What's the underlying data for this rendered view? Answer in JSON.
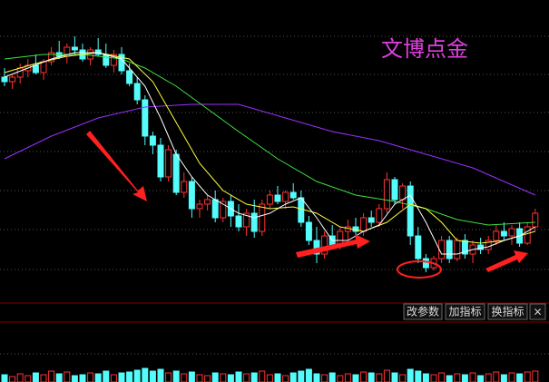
{
  "chart_data": {
    "type": "candlestick",
    "title": "文博点金",
    "title_color": "#e040e0",
    "up_color": "#ff3232",
    "down_color": "#54fcfc",
    "ylim": [
      0,
      310
    ],
    "candles": [
      [
        225,
        235,
        215,
        220
      ],
      [
        220,
        228,
        212,
        225
      ],
      [
        225,
        240,
        218,
        235
      ],
      [
        232,
        245,
        225,
        238
      ],
      [
        238,
        250,
        228,
        230
      ],
      [
        230,
        245,
        222,
        242
      ],
      [
        242,
        258,
        238,
        252
      ],
      [
        252,
        265,
        245,
        248
      ],
      [
        248,
        262,
        240,
        258
      ],
      [
        258,
        270,
        250,
        255
      ],
      [
        255,
        262,
        242,
        245
      ],
      [
        245,
        258,
        238,
        255
      ],
      [
        255,
        268,
        248,
        250
      ],
      [
        250,
        262,
        235,
        238
      ],
      [
        238,
        255,
        230,
        250
      ],
      [
        250,
        258,
        228,
        232
      ],
      [
        232,
        240,
        215,
        218
      ],
      [
        218,
        225,
        195,
        200
      ],
      [
        200,
        205,
        150,
        160
      ],
      [
        160,
        165,
        140,
        150
      ],
      [
        150,
        158,
        110,
        115
      ],
      [
        115,
        150,
        110,
        145
      ],
      [
        140,
        145,
        95,
        98
      ],
      [
        98,
        120,
        92,
        110
      ],
      [
        110,
        115,
        70,
        80
      ],
      [
        80,
        90,
        70,
        85
      ],
      [
        85,
        95,
        78,
        90
      ],
      [
        90,
        100,
        65,
        70
      ],
      [
        70,
        92,
        65,
        88
      ],
      [
        88,
        95,
        60,
        72
      ],
      [
        72,
        85,
        55,
        60
      ],
      [
        60,
        80,
        50,
        75
      ],
      [
        75,
        90,
        48,
        55
      ],
      [
        55,
        90,
        50,
        85
      ],
      [
        85,
        100,
        80,
        95
      ],
      [
        95,
        105,
        85,
        88
      ],
      [
        88,
        100,
        80,
        98
      ],
      [
        98,
        108,
        90,
        92
      ],
      [
        92,
        100,
        60,
        65
      ],
      [
        65,
        72,
        40,
        45
      ],
      [
        45,
        60,
        20,
        30
      ],
      [
        30,
        55,
        25,
        50
      ],
      [
        50,
        62,
        35,
        40
      ],
      [
        40,
        60,
        35,
        55
      ],
      [
        55,
        68,
        45,
        60
      ],
      [
        60,
        70,
        50,
        55
      ],
      [
        55,
        75,
        50,
        70
      ],
      [
        70,
        78,
        60,
        65
      ],
      [
        65,
        85,
        60,
        80
      ],
      [
        80,
        120,
        75,
        112
      ],
      [
        112,
        115,
        85,
        90
      ],
      [
        90,
        108,
        80,
        105
      ],
      [
        105,
        110,
        40,
        50
      ],
      [
        50,
        60,
        20,
        25
      ],
      [
        25,
        30,
        10,
        15
      ],
      [
        15,
        28,
        12,
        25
      ],
      [
        25,
        50,
        20,
        45
      ],
      [
        45,
        50,
        20,
        25
      ],
      [
        25,
        48,
        22,
        45
      ],
      [
        45,
        52,
        25,
        30
      ],
      [
        30,
        45,
        20,
        40
      ],
      [
        40,
        48,
        30,
        35
      ],
      [
        35,
        50,
        30,
        45
      ],
      [
        45,
        62,
        40,
        55
      ],
      [
        55,
        65,
        45,
        50
      ],
      [
        50,
        62,
        40,
        58
      ],
      [
        58,
        65,
        38,
        42
      ],
      [
        42,
        65,
        40,
        60
      ],
      [
        60,
        80,
        55,
        75
      ]
    ],
    "lines": [
      {
        "color": "#9b30ff",
        "x": [
          0,
          6,
          12,
          18,
          24,
          30,
          36,
          42,
          48,
          54,
          60,
          68
        ],
        "values": [
          135,
          160,
          180,
          192,
          195,
          195,
          180,
          165,
          155,
          140,
          125,
          95
        ]
      },
      {
        "color": "#40e040",
        "x": [
          0,
          5,
          10,
          15,
          18,
          22,
          26,
          30,
          35,
          40,
          45,
          50,
          54,
          58,
          62,
          68
        ],
        "values": [
          245,
          250,
          250,
          245,
          235,
          215,
          190,
          165,
          135,
          110,
          95,
          88,
          80,
          68,
          62,
          65
        ]
      },
      {
        "color": "#ffff40",
        "x": [
          0,
          4,
          8,
          12,
          16,
          19,
          22,
          25,
          28,
          31,
          34,
          37,
          40,
          43,
          46,
          49,
          52,
          54,
          56,
          58,
          61,
          64,
          68
        ],
        "values": [
          230,
          240,
          248,
          252,
          245,
          220,
          175,
          130,
          100,
          85,
          80,
          82,
          75,
          60,
          55,
          65,
          85,
          80,
          65,
          45,
          42,
          45,
          55
        ]
      },
      {
        "color": "#ffffff",
        "x": [
          0,
          3,
          6,
          9,
          12,
          15,
          18,
          20,
          22,
          24,
          26,
          28,
          30,
          32,
          34,
          36,
          38,
          40,
          42,
          44,
          46,
          48,
          50,
          52,
          54,
          56,
          58,
          60,
          62,
          64,
          66,
          68
        ],
        "values": [
          225,
          235,
          245,
          252,
          252,
          245,
          215,
          180,
          140,
          115,
          95,
          85,
          75,
          70,
          75,
          85,
          92,
          70,
          45,
          45,
          55,
          62,
          85,
          95,
          65,
          30,
          30,
          35,
          38,
          45,
          50,
          60
        ]
      }
    ],
    "volume": {
      "ylim": [
        0,
        20
      ],
      "values": [
        8,
        6,
        9,
        7,
        10,
        8,
        12,
        9,
        11,
        7,
        8,
        10,
        9,
        12,
        8,
        10,
        11,
        13,
        15,
        12,
        14,
        10,
        12,
        9,
        11,
        8,
        7,
        10,
        9,
        8,
        11,
        9,
        10,
        12,
        8,
        9,
        7,
        10,
        12,
        14,
        9,
        8,
        10,
        7,
        9,
        8,
        11,
        10,
        9,
        13,
        10,
        8,
        14,
        12,
        9,
        8,
        10,
        7,
        9,
        8,
        10,
        7,
        9,
        11,
        8,
        10,
        9,
        11,
        12
      ]
    },
    "buttons": [
      "改参数",
      "加指标",
      "换指标",
      "×"
    ]
  }
}
